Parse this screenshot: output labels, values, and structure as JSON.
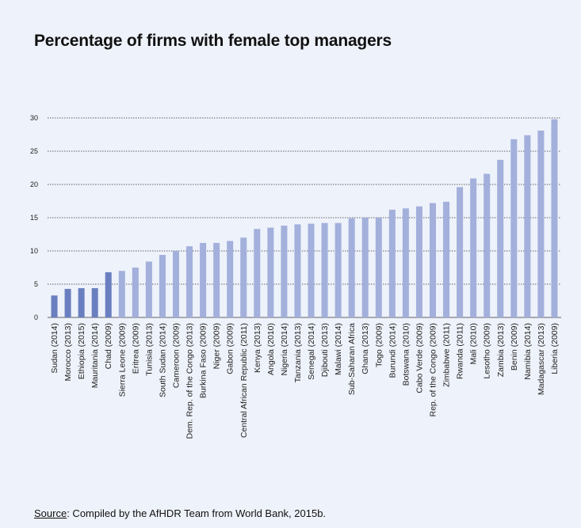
{
  "title": "Percentage of firms with female top managers",
  "source": {
    "label": "Source",
    "text": ": Compiled by the AfHDR Team from World Bank, 2015b."
  },
  "colors": {
    "background": "#eef2fa",
    "bar_dark": "#6a7fbf",
    "bar_light": "#a3b0dc",
    "gridline": "#333333"
  },
  "chart_data": {
    "type": "bar",
    "title": "Percentage of firms with female top managers",
    "xlabel": "",
    "ylabel": "",
    "ylim": [
      0,
      30
    ],
    "yticks": [
      0,
      5,
      10,
      15,
      20,
      25,
      30
    ],
    "grid": true,
    "gridline_style": "dotted",
    "categories": [
      "Sudan (2014)",
      "Morocco (2013)",
      "Ethiopia (2015)",
      "Mauritania (2014)",
      "Chad (2009)",
      "Sierra Leone (2009)",
      "Eritrea (2009)",
      "Tunisia (2013)",
      "South Sudan (2014)",
      "Cameroon (2009)",
      "Dem. Rep. of the Congo (2013)",
      "Burkina Faso (2009)",
      "Niger (2009)",
      "Gabon (2009)",
      "Central African Republic (2011)",
      "Kenya (2013)",
      "Angola (2010)",
      "Nigeria (2014)",
      "Tanzania (2013)",
      "Senegal (2014)",
      "Djibouti (2013)",
      "Malawi (2014)",
      "Sub-Saharan Africa",
      "Ghana (2013)",
      "Togo (2009)",
      "Burundi (2014)",
      "Botswana (2010)",
      "Cabo Verde (2009)",
      "Rep. of the Congo (2009)",
      "Zimbabwe (2011)",
      "Rwanda (2011)",
      "Mali (2010)",
      "Lesotho (2009)",
      "Zambia (2013)",
      "Benin (2009)",
      "Namibia (2014)",
      "Madagascar (2013)",
      "Liberia (2009)"
    ],
    "values": [
      3.3,
      4.3,
      4.4,
      4.4,
      6.8,
      7.0,
      7.5,
      8.4,
      9.4,
      10.0,
      10.7,
      11.2,
      11.2,
      11.5,
      12.0,
      13.3,
      13.5,
      13.8,
      14.0,
      14.1,
      14.2,
      14.2,
      14.9,
      15.0,
      15.0,
      16.2,
      16.4,
      16.7,
      17.2,
      17.4,
      19.6,
      20.9,
      21.6,
      23.7,
      26.8,
      27.4,
      28.1,
      29.8
    ],
    "dark_bar_count": 5
  }
}
